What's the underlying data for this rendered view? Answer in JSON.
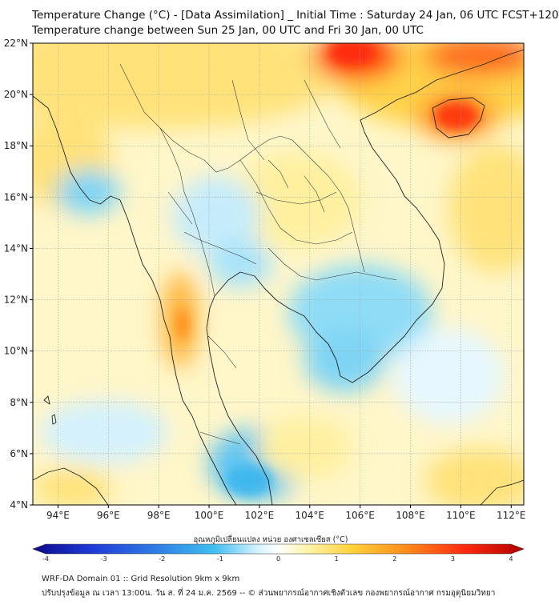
{
  "header": {
    "title": "Temperature Change (°C) - [Data Assimilation] _ Initial Time : Saturday 24 Jan, 06 UTC FCST+120",
    "subtitle": "Temperature change between Sun 25 Jan, 00 UTC and Fri 30 Jan, 00 UTC"
  },
  "map": {
    "lat_labels": [
      "22°N",
      "20°N",
      "18°N",
      "16°N",
      "14°N",
      "12°N",
      "10°N",
      "8°N",
      "6°N",
      "4°N"
    ],
    "lon_labels": [
      "94°E",
      "96°E",
      "98°E",
      "100°E",
      "102°E",
      "104°E",
      "106°E",
      "108°E",
      "110°E",
      "112°E"
    ],
    "lat_range": [
      4,
      22
    ],
    "lon_range": [
      93,
      112.5
    ],
    "grid": true
  },
  "colorbar": {
    "label": "อุณหภูมิเปลี่ยนแปลง หน่วย องศาเซลเซียส (°C)",
    "ticks": [
      "-4",
      "-3",
      "-2",
      "-1",
      "0",
      "1",
      "2",
      "3",
      "4"
    ],
    "range": [
      -4,
      4
    ],
    "colors": [
      "#0b0a8a",
      "#1f3ad6",
      "#2f7de6",
      "#3fbff0",
      "#d8f3ff",
      "#ffffff",
      "#fff3a8",
      "#ffd23a",
      "#ff8c1a",
      "#ff2a10",
      "#b00000"
    ]
  },
  "footer": {
    "line1": "WRF-DA Domain 01 :: Grid Resolution 9km x 9km",
    "line2": "ปรับปรุงข้อมูล ณ เวลา 13:00น. วัน ส. ที่ 24 ม.ค. 2569 -- © ส่วนพยากรณ์อากาศเชิงตัวเลข กองพยากรณ์อากาศ กรมอุตุนิยมวิทยา"
  }
}
